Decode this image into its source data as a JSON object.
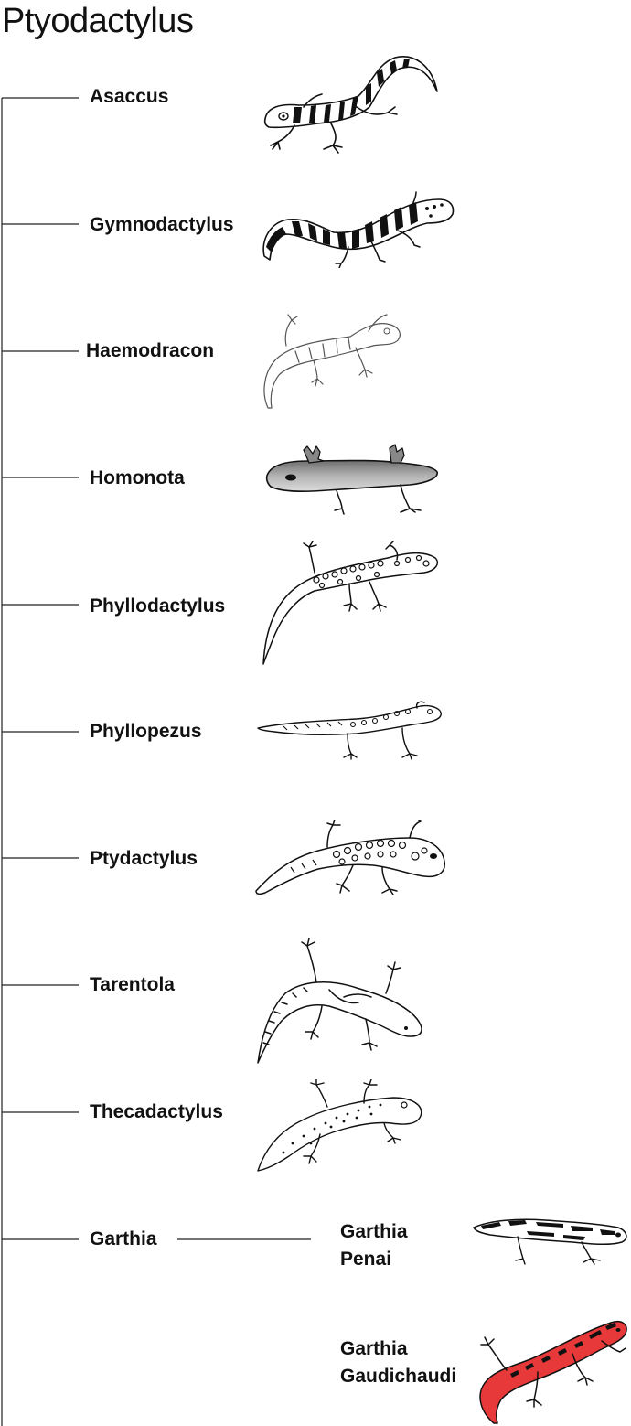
{
  "title": "Ptyodactylus",
  "taxa": [
    {
      "name": "Asaccus"
    },
    {
      "name": "Gymnodactylus"
    },
    {
      "name": "Haemodracon"
    },
    {
      "name": "Homonota"
    },
    {
      "name": "Phyllodactylus"
    },
    {
      "name": "Phyllopezus"
    },
    {
      "name": "Ptydactylus"
    },
    {
      "name": "Tarentola"
    },
    {
      "name": "Thecadactylus"
    },
    {
      "name": "Garthia",
      "species": [
        {
          "line1": "Garthia",
          "line2": "Penai"
        },
        {
          "line1": "Garthia",
          "line2": "Gaudichaudi"
        }
      ]
    }
  ],
  "colors": {
    "line": "#222222",
    "highlight": "#e8393a",
    "gray_fill": "#9a9a9a"
  },
  "icons": [
    "gecko-asaccus-icon",
    "gecko-gymnodactylus-icon",
    "gecko-haemodracon-icon",
    "gecko-homonota-icon",
    "gecko-phyllodactylus-icon",
    "gecko-phyllopezus-icon",
    "gecko-ptydactylus-icon",
    "gecko-tarentola-icon",
    "gecko-thecadactylus-icon",
    "gecko-garthia-penai-icon",
    "gecko-garthia-gaudichaudi-icon"
  ]
}
